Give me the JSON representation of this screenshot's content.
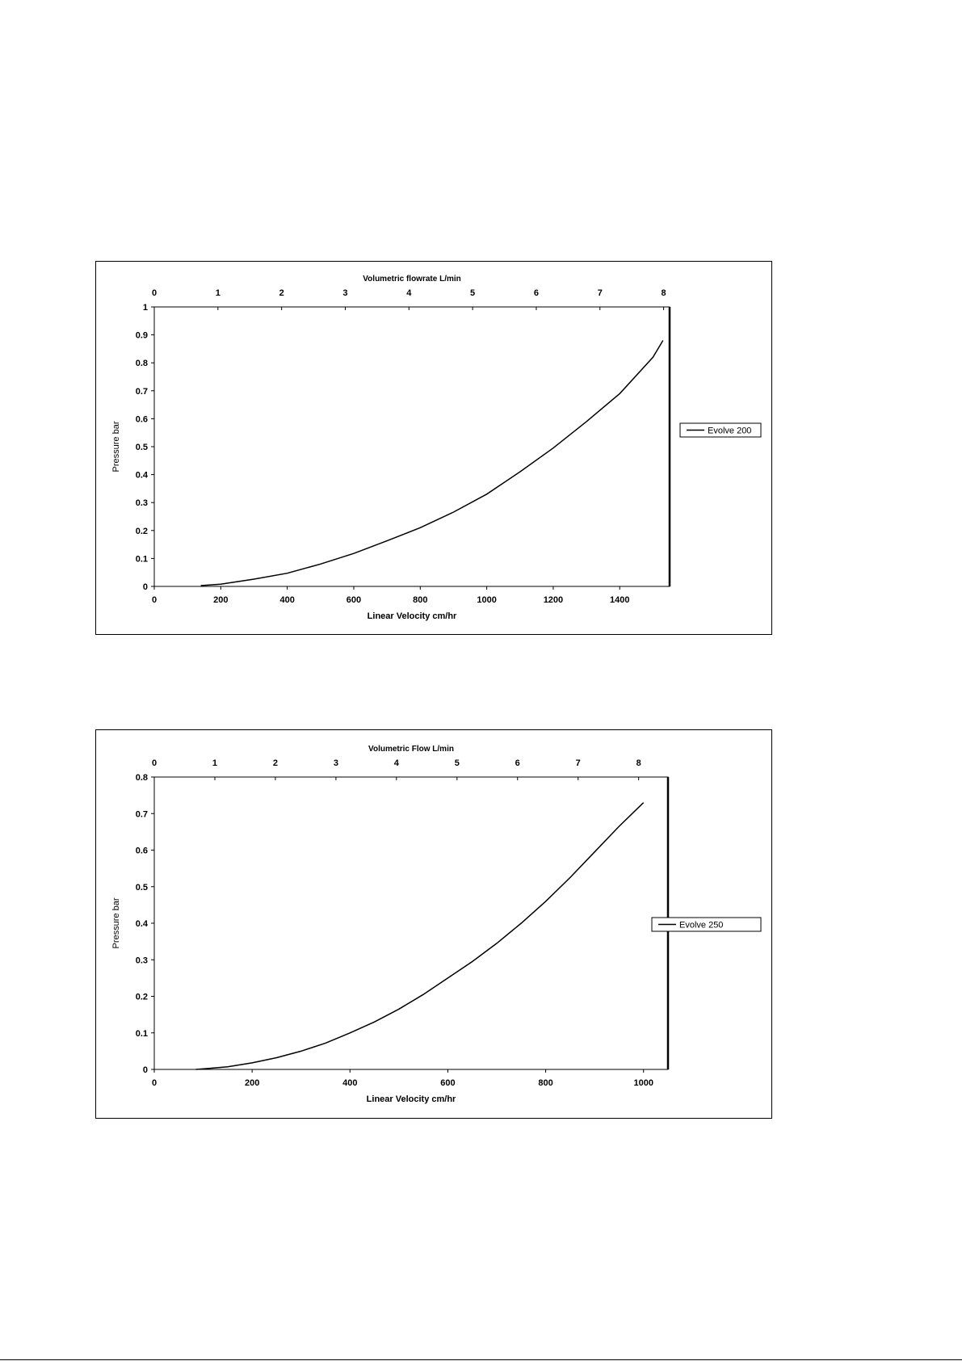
{
  "chart_data": [
    {
      "type": "line",
      "x": [
        140,
        200,
        300,
        400,
        500,
        600,
        700,
        800,
        900,
        1000,
        1100,
        1200,
        1300,
        1400,
        1500,
        1530
      ],
      "series": [
        {
          "name": "Evolve 200",
          "values": [
            0.003,
            0.008,
            0.026,
            0.047,
            0.08,
            0.118,
            0.163,
            0.21,
            0.266,
            0.33,
            0.41,
            0.495,
            0.59,
            0.69,
            0.82,
            0.88
          ]
        }
      ],
      "xlabel": "Linear Velocity cm/hr",
      "ylabel": "Pressure bar",
      "x2label": "Volumetric flowrate L/min",
      "xlim": [
        0,
        1550
      ],
      "ylim": [
        0,
        1
      ],
      "x_ticks": [
        "0",
        "200",
        "400",
        "600",
        "800",
        "1000",
        "1200",
        "1400"
      ],
      "x_tick_values": [
        0,
        200,
        400,
        600,
        800,
        1000,
        1200,
        1400
      ],
      "y_ticks": [
        "0",
        "0.1",
        "0.2",
        "0.3",
        "0.4",
        "0.5",
        "0.6",
        "0.7",
        "0.8",
        "0.9",
        "1"
      ],
      "y_tick_values": [
        0,
        0.1,
        0.2,
        0.3,
        0.4,
        0.5,
        0.6,
        0.7,
        0.8,
        0.9,
        1
      ],
      "x2_ticks": [
        "0",
        "1",
        "2",
        "3",
        "4",
        "5",
        "6",
        "7",
        "8"
      ],
      "x2_tick_values": [
        0,
        191.5,
        383,
        574.5,
        766,
        957.5,
        1149,
        1340.5,
        1532
      ],
      "grid": false,
      "legend": "right"
    },
    {
      "type": "line",
      "x": [
        85,
        150,
        200,
        250,
        300,
        350,
        400,
        450,
        500,
        550,
        600,
        650,
        700,
        750,
        800,
        850,
        900,
        950,
        1000
      ],
      "series": [
        {
          "name": "Evolve 250",
          "values": [
            0.0,
            0.007,
            0.018,
            0.032,
            0.05,
            0.072,
            0.1,
            0.13,
            0.165,
            0.205,
            0.25,
            0.295,
            0.345,
            0.4,
            0.46,
            0.525,
            0.595,
            0.665,
            0.73
          ]
        }
      ],
      "xlabel": "Linear Velocity cm/hr",
      "ylabel": "Pressure bar",
      "x2label": "Volumetric Flow L/min",
      "xlim": [
        0,
        1050
      ],
      "ylim": [
        0,
        0.8
      ],
      "x_ticks": [
        "0",
        "200",
        "400",
        "600",
        "800",
        "1000"
      ],
      "x_tick_values": [
        0,
        200,
        400,
        600,
        800,
        1000
      ],
      "y_ticks": [
        "0",
        "0.1",
        "0.2",
        "0.3",
        "0.4",
        "0.5",
        "0.6",
        "0.7",
        "0.8"
      ],
      "y_tick_values": [
        0,
        0.1,
        0.2,
        0.3,
        0.4,
        0.5,
        0.6,
        0.7,
        0.8
      ],
      "x2_ticks": [
        "0",
        "1",
        "2",
        "3",
        "4",
        "5",
        "6",
        "7",
        "8"
      ],
      "x2_tick_values": [
        0,
        123.8,
        247.5,
        371.3,
        495,
        618.8,
        742.5,
        866.3,
        990
      ],
      "grid": false,
      "legend": "right"
    }
  ]
}
